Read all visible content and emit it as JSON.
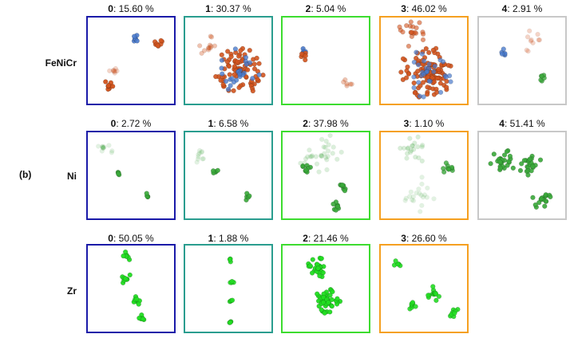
{
  "figure_label": "(b)",
  "colors": {
    "0": "#1a1aa8",
    "1": "#2a9d8f",
    "2": "#3ddc2f",
    "3": "#f5a020",
    "4": "#c8c8c8",
    "green_atom": "#3aa83a",
    "bright_green_atom": "#22dd22",
    "fe_atom": "#d2541e",
    "ni_atom": "#4a7acc"
  },
  "rows": [
    {
      "label": "FeNiCr",
      "panels": [
        {
          "cluster": "0",
          "value": "15.60 %"
        },
        {
          "cluster": "1",
          "value": "30.37 %"
        },
        {
          "cluster": "2",
          "value": "5.04 %"
        },
        {
          "cluster": "3",
          "value": "46.02 %"
        },
        {
          "cluster": "4",
          "value": "2.91 %"
        }
      ]
    },
    {
      "label": "Ni",
      "panels": [
        {
          "cluster": "0",
          "value": "2.72 %"
        },
        {
          "cluster": "1",
          "value": "6.58 %"
        },
        {
          "cluster": "2",
          "value": "37.98 %"
        },
        {
          "cluster": "3",
          "value": "1.10 %"
        },
        {
          "cluster": "4",
          "value": "51.41 %"
        }
      ]
    },
    {
      "label": "Zr",
      "panels": [
        {
          "cluster": "0",
          "value": "50.05 %"
        },
        {
          "cluster": "1",
          "value": "1.88 %"
        },
        {
          "cluster": "2",
          "value": "21.46 %"
        },
        {
          "cluster": "3",
          "value": "26.60 %"
        }
      ]
    }
  ]
}
